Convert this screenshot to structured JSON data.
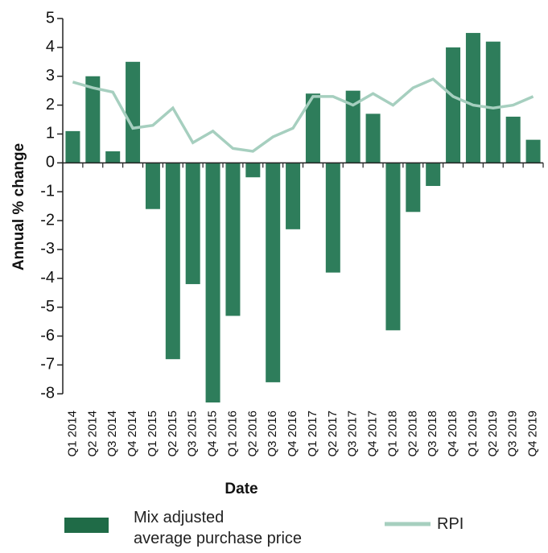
{
  "chart_data": {
    "type": "bar_line",
    "x_label": "Date",
    "y_label": "Annual % change",
    "categories": [
      "Q1 2014",
      "Q2 2014",
      "Q3 2014",
      "Q4 2014",
      "Q1 2015",
      "Q2 2015",
      "Q3 2015",
      "Q4 2015",
      "Q1 2016",
      "Q2 2016",
      "Q3 2016",
      "Q4 2016",
      "Q1 2017",
      "Q2 2017",
      "Q3 2017",
      "Q4 2017",
      "Q1 2018",
      "Q2 2018",
      "Q3 2018",
      "Q4 2018",
      "Q1 2019",
      "Q2 2019",
      "Q3 2019",
      "Q4 2019"
    ],
    "series": [
      {
        "name": "Mix adjusted\naverage purchase price",
        "type": "bar",
        "color": "#2e7d5b",
        "values": [
          1.1,
          3.0,
          0.4,
          3.5,
          -1.6,
          -6.8,
          -4.2,
          -8.3,
          -5.3,
          -0.5,
          -7.6,
          -2.3,
          2.4,
          -3.8,
          2.5,
          1.7,
          -5.8,
          -1.7,
          -0.8,
          4.0,
          4.5,
          4.2,
          1.6,
          0.8
        ]
      },
      {
        "name": "RPI",
        "type": "line",
        "color": "#a6cfbf",
        "values": [
          2.8,
          2.6,
          2.45,
          1.2,
          1.3,
          1.9,
          0.7,
          1.1,
          0.5,
          0.4,
          0.9,
          1.2,
          2.3,
          2.3,
          2.0,
          2.4,
          2.0,
          2.6,
          2.9,
          2.3,
          2.0,
          1.9,
          2.0,
          2.3
        ]
      }
    ],
    "ylim": [
      -8.3,
      5
    ],
    "yticks": [
      5,
      4,
      3,
      2,
      1,
      0,
      -1,
      -2,
      -3,
      -4,
      -5,
      -6,
      -7,
      -8
    ]
  }
}
